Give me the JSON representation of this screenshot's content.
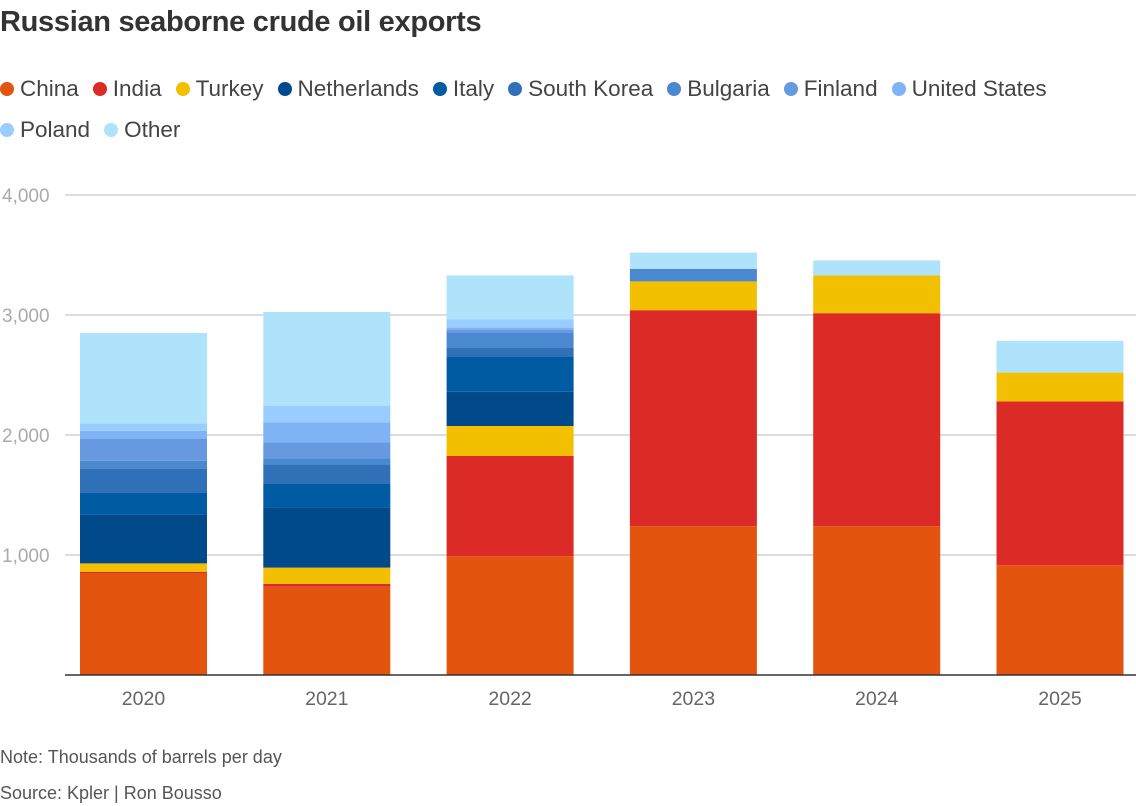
{
  "chart_data": {
    "type": "bar",
    "stacked": true,
    "title": "Russian seaborne crude oil exports",
    "xlabel": "",
    "ylabel": "",
    "ylim": [
      0,
      4000
    ],
    "yticks": [
      0,
      1000,
      2000,
      3000,
      4000
    ],
    "ytick_labels": [
      "",
      "1,000",
      "2,000",
      "3,000",
      "4,000"
    ],
    "grid": true,
    "legend_position": "top",
    "categories": [
      "2020",
      "2021",
      "2022",
      "2023",
      "2024",
      "2025"
    ],
    "series": [
      {
        "name": "China",
        "color": "#e3540e",
        "values": [
          850,
          735,
          990,
          1240,
          1240,
          915
        ]
      },
      {
        "name": "India",
        "color": "#dc2b27",
        "values": [
          10,
          25,
          835,
          1800,
          1775,
          1365
        ]
      },
      {
        "name": "Turkey",
        "color": "#f2c000",
        "values": [
          70,
          135,
          250,
          240,
          315,
          240
        ]
      },
      {
        "name": "Netherlands",
        "color": "#004a8c",
        "values": [
          410,
          500,
          285,
          0,
          0,
          0
        ]
      },
      {
        "name": "Italy",
        "color": "#005ba3",
        "values": [
          180,
          200,
          290,
          0,
          0,
          0
        ]
      },
      {
        "name": "South Korea",
        "color": "#2f70b8",
        "values": [
          200,
          160,
          75,
          0,
          0,
          0
        ]
      },
      {
        "name": "Bulgaria",
        "color": "#4a88d0",
        "values": [
          65,
          50,
          125,
          105,
          0,
          0
        ]
      },
      {
        "name": "Finland",
        "color": "#6699e0",
        "values": [
          185,
          135,
          25,
          0,
          0,
          0
        ]
      },
      {
        "name": "United States",
        "color": "#7fb3f5",
        "values": [
          65,
          165,
          20,
          0,
          0,
          0
        ]
      },
      {
        "name": "Poland",
        "color": "#99ccff",
        "values": [
          60,
          140,
          70,
          0,
          0,
          0
        ]
      },
      {
        "name": "Other",
        "color": "#aee3fb",
        "values": [
          755,
          780,
          365,
          135,
          125,
          265
        ]
      }
    ]
  },
  "note": "Note: Thousands of barrels per day",
  "source": "Source: Kpler | Ron Bousso"
}
